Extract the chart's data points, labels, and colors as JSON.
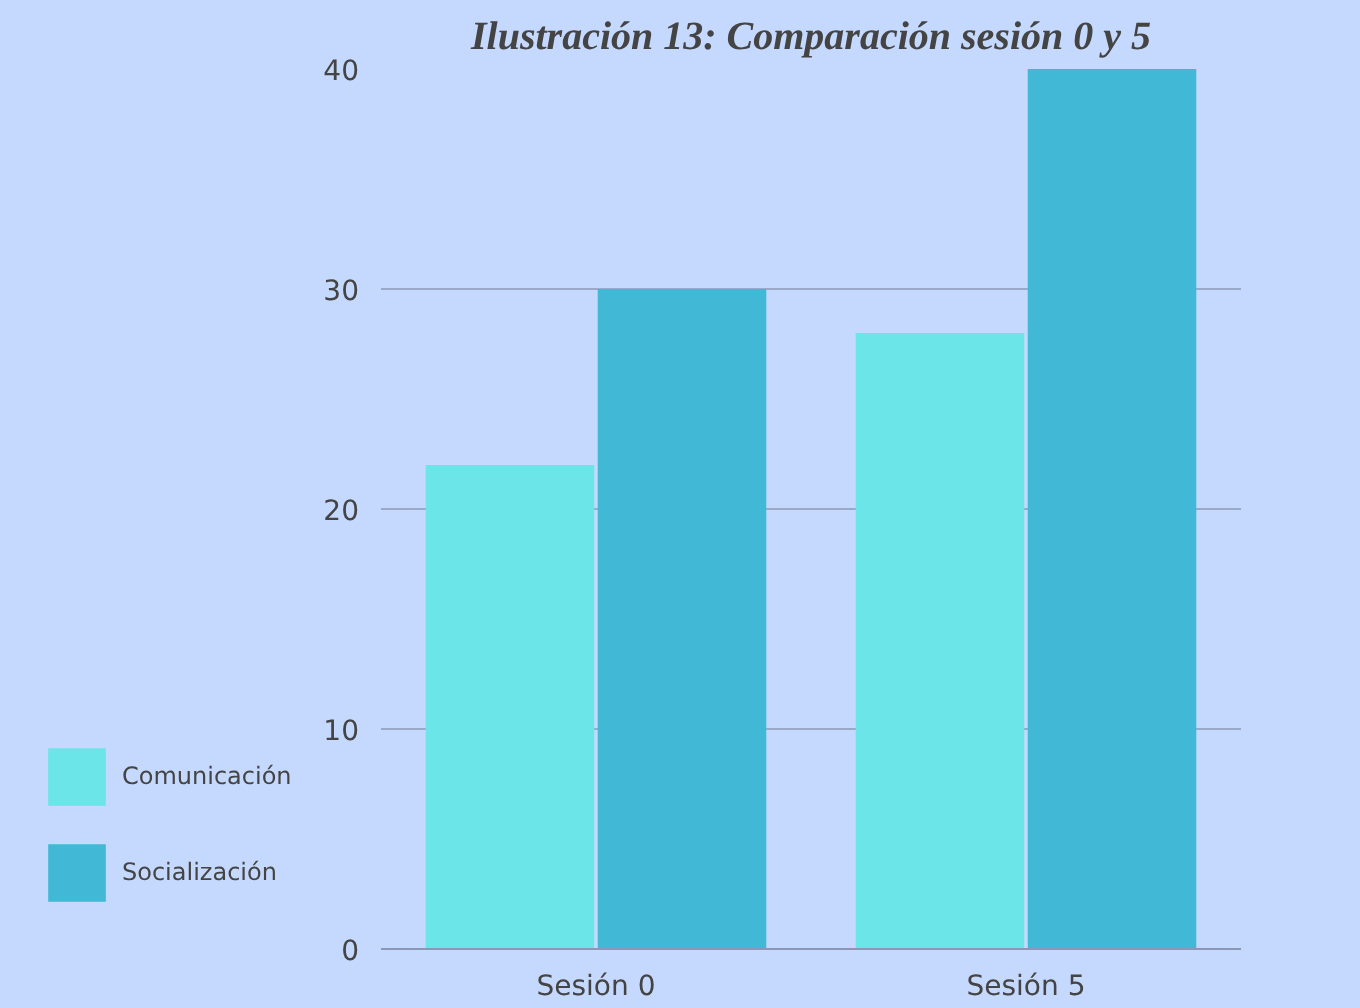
{
  "chart_data": {
    "type": "bar",
    "title": "Ilustración 13: Comparación sesión 0 y 5",
    "categories": [
      "Sesión 0",
      "Sesión 5"
    ],
    "series": [
      {
        "name": "Comunicación",
        "color": "#6ce5e8",
        "values": [
          22,
          28
        ]
      },
      {
        "name": "Socialización",
        "color": "#41b8d5",
        "values": [
          30,
          40
        ]
      }
    ],
    "ylim": [
      0,
      40
    ],
    "yticks": [
      0,
      10,
      20,
      30,
      40
    ],
    "grid": "y",
    "legend": "bottom left"
  }
}
